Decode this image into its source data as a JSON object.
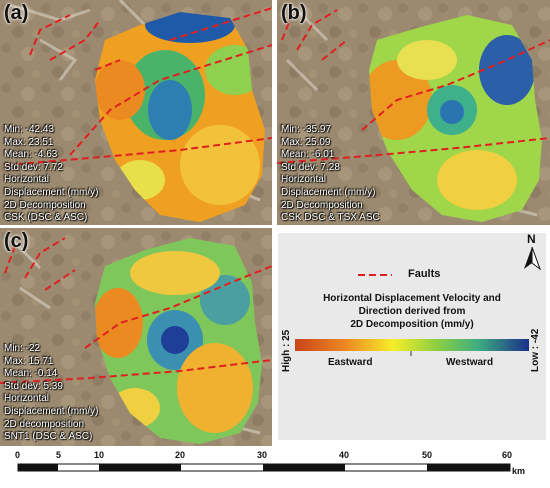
{
  "panels": [
    {
      "label": "(a)",
      "stats": [
        "Min: -42.43",
        "Max: 23.51",
        "Mean: -4.63",
        "Std dev: 7.72",
        "Horizontal",
        "Displacement (mm/y)",
        "2D Decomposition",
        "CSK (DSC & ASC)"
      ]
    },
    {
      "label": "(b)",
      "stats": [
        "Min: -35.97",
        "Max: 25.09",
        "Mean: -6.01",
        "Std dev: 7.28",
        "Horizontal",
        "Displacement (mm/y)",
        "2D Decomposition",
        "CSK DSC & TSX ASC"
      ]
    },
    {
      "label": "(c)",
      "stats": [
        "Min: -22",
        "Max: 15.71",
        "Mean: -0.14",
        "Std dev: 5.39",
        "Horizontal",
        "Displacement (mm/y)",
        "2D decomposition",
        "SNT1 (DSC & ASC)"
      ]
    }
  ],
  "legend": {
    "north": "N",
    "faults_label": "Faults",
    "title_lines": [
      "Horizontal Displacement Velocity and",
      "Direction derived from",
      "2D Decomposition (mm/y)"
    ],
    "high_label": "High : 25",
    "low_label": "Low : -42",
    "eastward": "Eastward",
    "westward": "Westward",
    "colors": {
      "fault": "#e02020",
      "east": "#d84010",
      "west": "#1a2f8a"
    }
  },
  "scalebar": {
    "ticks": [
      "0",
      "5",
      "10",
      "20",
      "30",
      "40",
      "50",
      "60"
    ],
    "unit": "km"
  }
}
